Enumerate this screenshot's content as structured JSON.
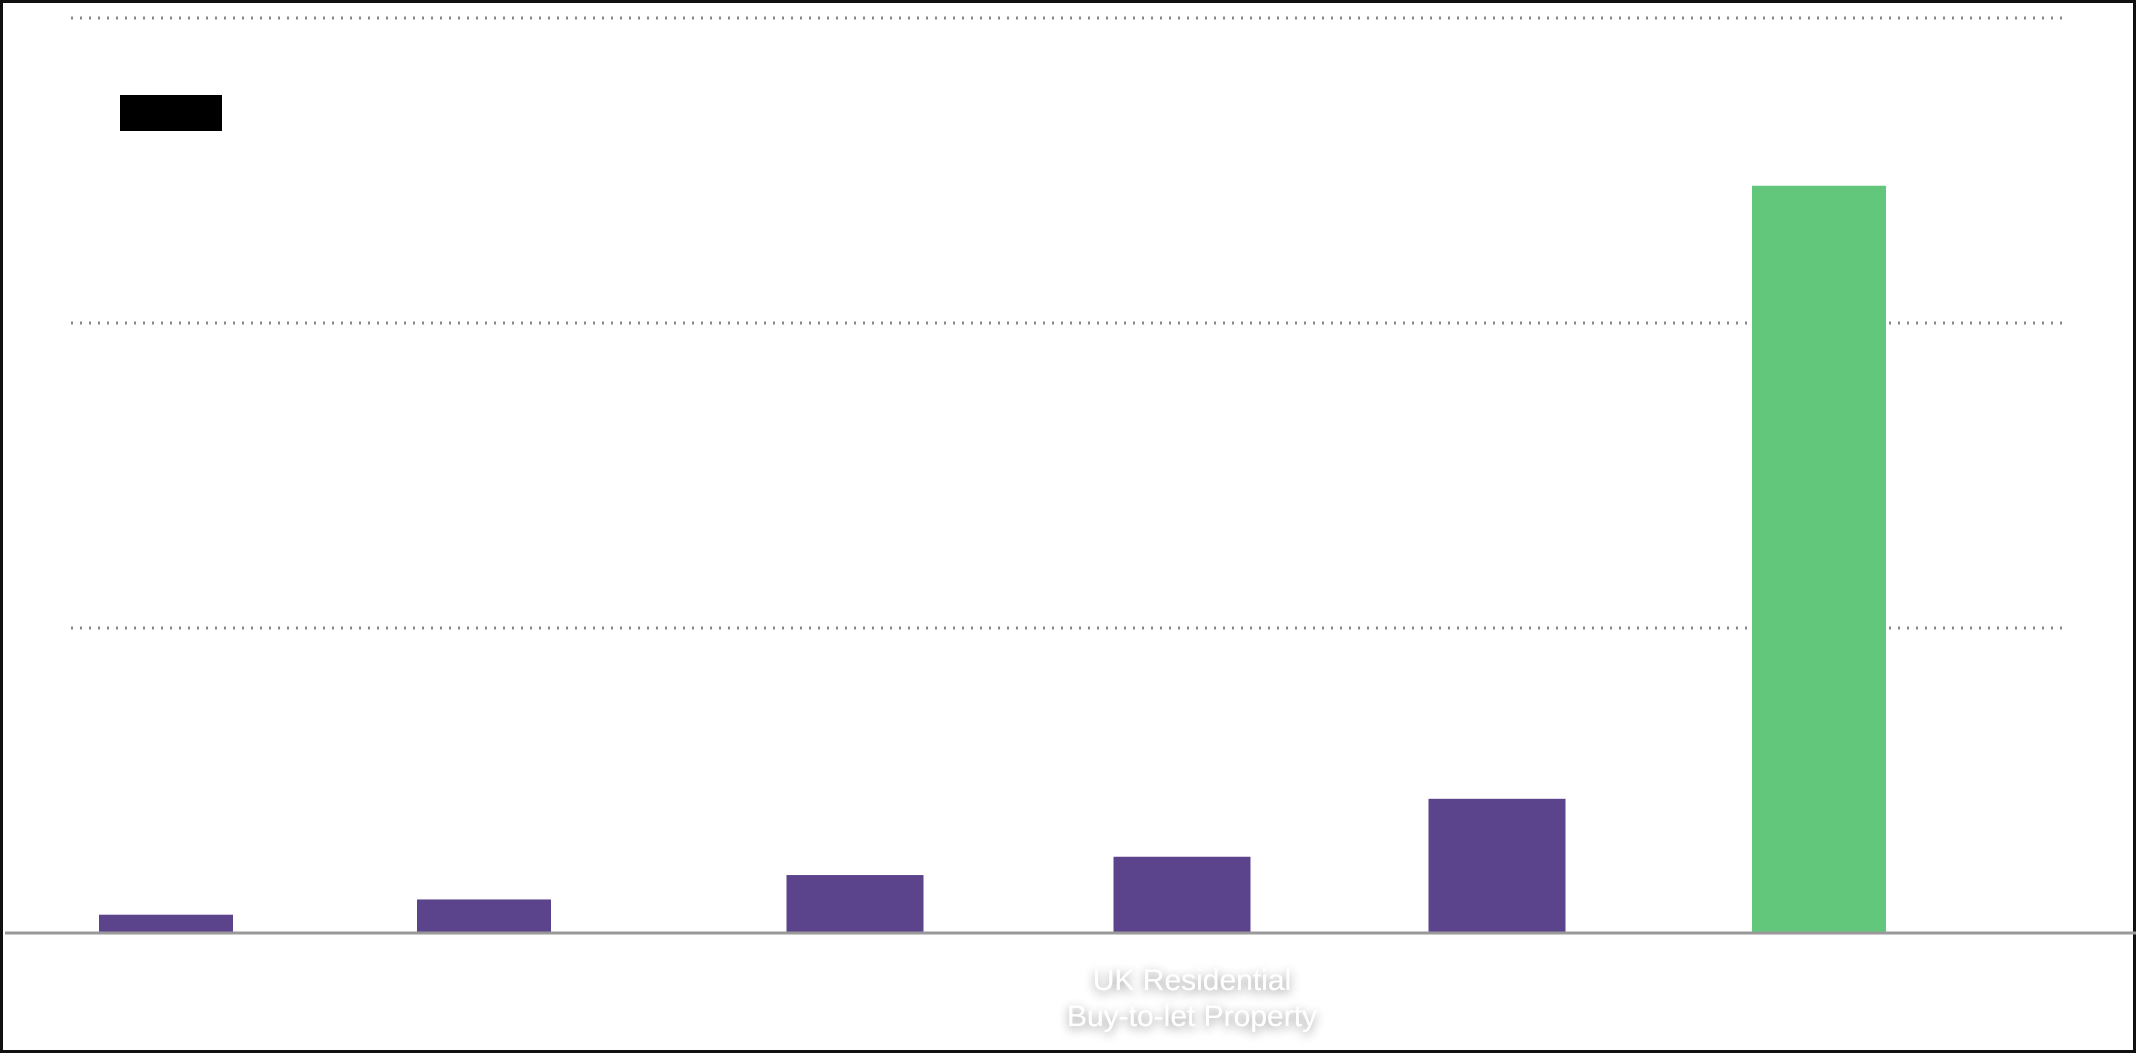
{
  "chart_data": {
    "type": "bar",
    "title": "",
    "xlabel": "",
    "ylabel": "",
    "ylim": [
      0,
      3
    ],
    "grid": "horizontal-dotted",
    "legend": "top-left",
    "categories": [
      "",
      "",
      "",
      "UK Residential Buy-to-let Property",
      "",
      ""
    ],
    "category_label_lines": [
      "UK Residential",
      "Buy-to-let Property"
    ],
    "values": [
      0.06,
      0.11,
      0.19,
      0.25,
      0.44,
      2.45
    ],
    "bar_colors": [
      "#5b448c",
      "#5b448c",
      "#5b448c",
      "#5b448c",
      "#5b448c",
      "#63c77b"
    ]
  },
  "colors": {
    "accent": "#5b448c",
    "highlight": "#63c77b",
    "grid": "#888888",
    "axis": "#999999",
    "legend_swatch": "#000000"
  }
}
